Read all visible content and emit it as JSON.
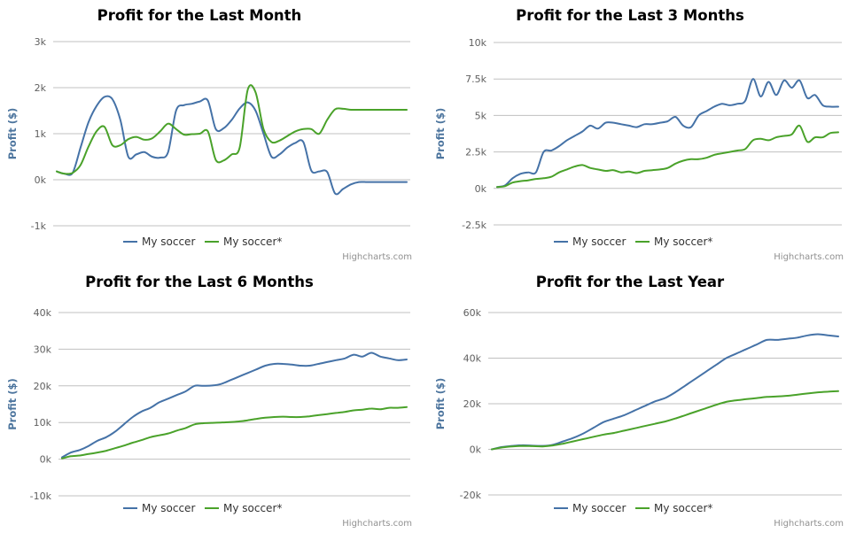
{
  "colors": {
    "series1": "#4572a7",
    "series2": "#4aa22a",
    "grid": "#c0c0c0",
    "tick": "#606060",
    "axis_title": "#4d759e"
  },
  "legend": {
    "series1_label": "My soccer",
    "series2_label": "My soccer*"
  },
  "credits": "Highcharts.com",
  "chart_data": [
    {
      "type": "line",
      "title": "Profit for the Last Month",
      "ylabel": "Profit ($)",
      "ylim": [
        -1000,
        3000
      ],
      "yticks": [
        -1000,
        0,
        1000,
        2000,
        3000
      ],
      "ytick_labels": [
        "-1k",
        "0k",
        "1k",
        "2k",
        "3k"
      ],
      "series": [
        {
          "name": "My soccer",
          "values": [
            180,
            130,
            150,
            700,
            1250,
            1600,
            1800,
            1750,
            1300,
            500,
            550,
            600,
            500,
            480,
            600,
            1500,
            1620,
            1650,
            1700,
            1720,
            1100,
            1120,
            1300,
            1550,
            1680,
            1500,
            1000,
            500,
            550,
            700,
            800,
            820,
            200,
            180,
            170,
            -300,
            -200,
            -100,
            -50,
            -50,
            -50,
            -50,
            -50,
            -50,
            -50
          ]
        },
        {
          "name": "My soccer*",
          "values": [
            180,
            130,
            150,
            320,
            720,
            1050,
            1150,
            750,
            750,
            880,
            930,
            870,
            900,
            1050,
            1220,
            1100,
            980,
            990,
            1000,
            1050,
            430,
            420,
            550,
            700,
            1950,
            1900,
            1100,
            820,
            850,
            950,
            1050,
            1100,
            1100,
            1000,
            1300,
            1530,
            1540,
            1520,
            1520,
            1520,
            1520,
            1520,
            1520,
            1520,
            1520
          ]
        }
      ]
    },
    {
      "type": "line",
      "title": "Profit for the Last 3 Months",
      "ylabel": "Profit ($)",
      "ylim": [
        -2500,
        10000
      ],
      "yticks": [
        -2500,
        0,
        2500,
        5000,
        7500,
        10000
      ],
      "ytick_labels": [
        "-2.5k",
        "0k",
        "2.5k",
        "5k",
        "7.5k",
        "10k"
      ],
      "series": [
        {
          "name": "My soccer",
          "values": [
            100,
            200,
            700,
            1000,
            1100,
            1100,
            2500,
            2600,
            2900,
            3300,
            3600,
            3900,
            4300,
            4100,
            4500,
            4500,
            4400,
            4300,
            4200,
            4400,
            4400,
            4500,
            4600,
            4900,
            4300,
            4200,
            5000,
            5300,
            5600,
            5800,
            5700,
            5800,
            6000,
            7500,
            6300,
            7300,
            6400,
            7400,
            6900,
            7400,
            6200,
            6400,
            5700,
            5600,
            5600
          ]
        },
        {
          "name": "My soccer*",
          "values": [
            100,
            150,
            400,
            500,
            550,
            650,
            700,
            800,
            1100,
            1300,
            1500,
            1600,
            1400,
            1300,
            1200,
            1250,
            1100,
            1150,
            1050,
            1200,
            1250,
            1300,
            1400,
            1700,
            1900,
            2000,
            2000,
            2100,
            2300,
            2400,
            2500,
            2600,
            2700,
            3300,
            3400,
            3300,
            3500,
            3600,
            3700,
            4300,
            3200,
            3500,
            3500,
            3800,
            3850
          ]
        }
      ]
    },
    {
      "type": "line",
      "title": "Profit for the Last 6 Months",
      "ylabel": "Profit ($)",
      "ylim": [
        -10000,
        40000
      ],
      "yticks": [
        -10000,
        0,
        10000,
        20000,
        30000,
        40000
      ],
      "ytick_labels": [
        "-10k",
        "0k",
        "10k",
        "20k",
        "30k",
        "40k"
      ],
      "series": [
        {
          "name": "My soccer",
          "values": [
            500,
            1800,
            2500,
            3600,
            5000,
            6000,
            7500,
            9500,
            11500,
            13000,
            14000,
            15500,
            16500,
            17500,
            18500,
            20000,
            20000,
            20100,
            20500,
            21500,
            22500,
            23500,
            24500,
            25500,
            26000,
            26000,
            25800,
            25500,
            25500,
            26000,
            26500,
            27000,
            27500,
            28500,
            28000,
            29000,
            28000,
            27500,
            27000,
            27200
          ]
        },
        {
          "name": "My soccer*",
          "values": [
            200,
            800,
            1000,
            1400,
            1800,
            2300,
            3000,
            3700,
            4500,
            5200,
            6000,
            6500,
            7000,
            7800,
            8500,
            9500,
            9800,
            9900,
            10000,
            10100,
            10300,
            10600,
            11000,
            11300,
            11500,
            11600,
            11500,
            11500,
            11700,
            12000,
            12300,
            12600,
            12900,
            13300,
            13500,
            13800,
            13600,
            14000,
            14000,
            14200
          ]
        }
      ]
    },
    {
      "type": "line",
      "title": "Profit for the Last Year",
      "ylabel": "Profit ($)",
      "ylim": [
        -20000,
        60000
      ],
      "yticks": [
        -20000,
        0,
        20000,
        40000,
        60000
      ],
      "ytick_labels": [
        "-20k",
        "0k",
        "20k",
        "40k",
        "60k"
      ],
      "series": [
        {
          "name": "My soccer",
          "values": [
            0,
            1000,
            1500,
            1800,
            1600,
            1500,
            2000,
            3500,
            5000,
            7000,
            9500,
            12000,
            13500,
            15000,
            17000,
            19000,
            21000,
            22500,
            25000,
            28000,
            31000,
            34000,
            37000,
            40000,
            42000,
            44000,
            46000,
            48000,
            48000,
            48500,
            49000,
            50000,
            50500,
            50000,
            49500
          ]
        },
        {
          "name": "My soccer*",
          "values": [
            0,
            800,
            1300,
            1500,
            1400,
            1300,
            1700,
            2500,
            3500,
            4500,
            5500,
            6500,
            7200,
            8200,
            9200,
            10200,
            11200,
            12200,
            13500,
            15000,
            16500,
            18000,
            19500,
            20800,
            21500,
            22000,
            22500,
            23000,
            23200,
            23500,
            24000,
            24500,
            25000,
            25300,
            25500
          ]
        }
      ]
    }
  ]
}
